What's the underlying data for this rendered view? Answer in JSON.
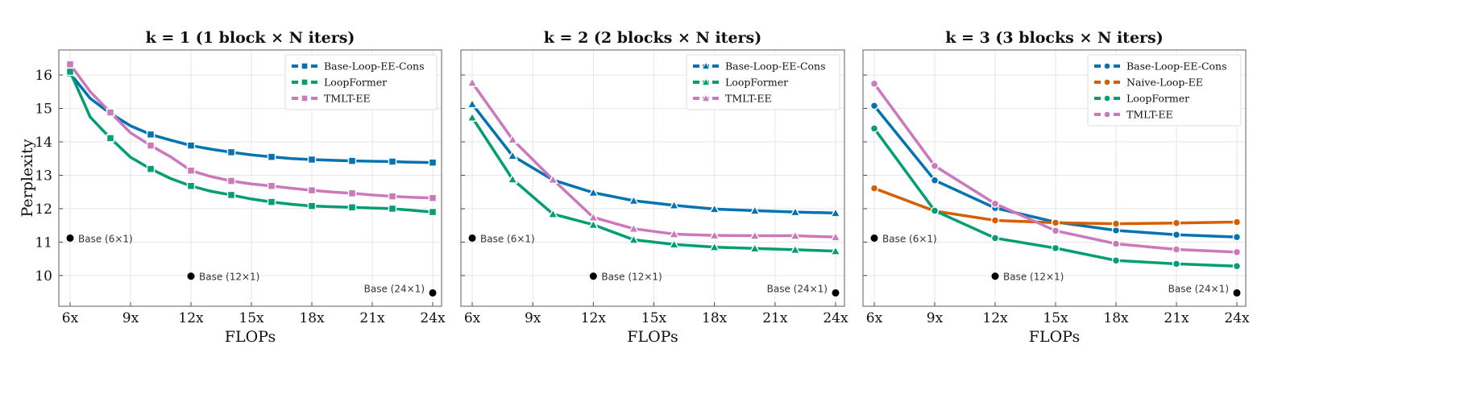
{
  "colors": {
    "Base-Loop-EE-Cons": "#0173b2",
    "Naive-Loop-EE": "#d55e00",
    "LoopFormer": "#029e73",
    "TMLT-EE": "#cc78bc",
    "base": "#000000"
  },
  "chart_data": [
    {
      "type": "line",
      "title": "k = 1  (1 block × N iters)",
      "xlabel": "FLOPs",
      "ylabel": "Perplexity",
      "xlim": [
        5.44,
        24.44
      ],
      "ylim": [
        9.08,
        16.75
      ],
      "xticks": [
        6,
        9,
        12,
        15,
        18,
        21,
        24
      ],
      "xtick_labels": [
        "6x",
        "9x",
        "12x",
        "15x",
        "18x",
        "21x",
        "24x"
      ],
      "yticks": [
        10,
        11,
        12,
        13,
        14,
        15,
        16
      ],
      "ytick_labels": [
        "10",
        "11",
        "12",
        "13",
        "14",
        "15",
        "16"
      ],
      "grid": true,
      "legend_position": "top-right",
      "marker": "square",
      "x": [
        6,
        7,
        8,
        9,
        10,
        11,
        12,
        13,
        14,
        15,
        16,
        17,
        18,
        19,
        20,
        21,
        22,
        23,
        24
      ],
      "marker_x": [
        6,
        8,
        10,
        12,
        14,
        16,
        18,
        20,
        22,
        24
      ],
      "series": [
        {
          "name": "Base-Loop-EE-Cons",
          "values": [
            16.05,
            15.3,
            14.85,
            14.48,
            14.22,
            14.05,
            13.89,
            13.78,
            13.69,
            13.61,
            13.55,
            13.5,
            13.47,
            13.45,
            13.43,
            13.42,
            13.41,
            13.39,
            13.38
          ]
        },
        {
          "name": "LoopFormer",
          "values": [
            16.1,
            14.74,
            14.11,
            13.54,
            13.19,
            12.9,
            12.68,
            12.52,
            12.41,
            12.29,
            12.2,
            12.13,
            12.08,
            12.06,
            12.04,
            12.02,
            12.0,
            11.95,
            11.9
          ]
        },
        {
          "name": "TMLT-EE",
          "values": [
            16.32,
            15.5,
            14.88,
            14.27,
            13.89,
            13.55,
            13.14,
            12.96,
            12.83,
            12.74,
            12.68,
            12.61,
            12.55,
            12.5,
            12.46,
            12.41,
            12.37,
            12.34,
            12.32
          ]
        }
      ],
      "base_points": [
        {
          "label": "Base (6×1)",
          "x": 6,
          "y": 11.12
        },
        {
          "label": "Base (12×1)",
          "x": 12,
          "y": 9.98
        },
        {
          "label": "Base (24×1)",
          "x": 24,
          "y": 9.48
        }
      ]
    },
    {
      "type": "line",
      "title": "k = 2  (2 blocks × N iters)",
      "xlabel": "FLOPs",
      "ylabel": "",
      "xlim": [
        5.44,
        24.44
      ],
      "ylim": [
        9.08,
        16.75
      ],
      "xticks": [
        6,
        9,
        12,
        15,
        18,
        21,
        24
      ],
      "xtick_labels": [
        "6x",
        "9x",
        "12x",
        "15x",
        "18x",
        "21x",
        "24x"
      ],
      "yticks": [
        10,
        11,
        12,
        13,
        14,
        15,
        16
      ],
      "ytick_labels": [],
      "grid": true,
      "legend_position": "top-right",
      "marker": "triangle",
      "x": [
        6,
        8,
        10,
        12,
        14,
        16,
        18,
        20,
        22,
        24
      ],
      "marker_x": [
        6,
        8,
        10,
        12,
        14,
        16,
        18,
        20,
        22,
        24
      ],
      "series": [
        {
          "name": "Base-Loop-EE-Cons",
          "values": [
            15.13,
            13.58,
            12.86,
            12.48,
            12.24,
            12.1,
            11.99,
            11.94,
            11.9,
            11.87
          ]
        },
        {
          "name": "LoopFormer",
          "values": [
            14.73,
            12.88,
            11.84,
            11.52,
            11.07,
            10.93,
            10.85,
            10.81,
            10.77,
            10.73
          ]
        },
        {
          "name": "TMLT-EE",
          "values": [
            15.77,
            14.07,
            12.87,
            11.74,
            11.4,
            11.24,
            11.2,
            11.19,
            11.19,
            11.15
          ]
        }
      ],
      "base_points": [
        {
          "label": "Base (6×1)",
          "x": 6,
          "y": 11.12
        },
        {
          "label": "Base (12×1)",
          "x": 12,
          "y": 9.98
        },
        {
          "label": "Base (24×1)",
          "x": 24,
          "y": 9.48
        }
      ]
    },
    {
      "type": "line",
      "title": "k = 3  (3 blocks × N iters)",
      "xlabel": "FLOPs",
      "ylabel": "",
      "xlim": [
        5.44,
        24.44
      ],
      "ylim": [
        9.08,
        16.75
      ],
      "xticks": [
        6,
        9,
        12,
        15,
        18,
        21,
        24
      ],
      "xtick_labels": [
        "6x",
        "9x",
        "12x",
        "15x",
        "18x",
        "21x",
        "24x"
      ],
      "yticks": [
        10,
        11,
        12,
        13,
        14,
        15,
        16
      ],
      "ytick_labels": [],
      "grid": true,
      "legend_position": "top-right",
      "marker": "circle",
      "x": [
        6,
        9,
        12,
        15,
        18,
        21,
        24
      ],
      "marker_x": [
        6,
        9,
        12,
        15,
        18,
        21,
        24
      ],
      "series": [
        {
          "name": "Base-Loop-EE-Cons",
          "values": [
            15.08,
            12.85,
            12.02,
            11.6,
            11.35,
            11.22,
            11.15
          ]
        },
        {
          "name": "Naive-Loop-EE",
          "values": [
            12.61,
            11.93,
            11.65,
            11.58,
            11.55,
            11.57,
            11.6
          ]
        },
        {
          "name": "LoopFormer",
          "values": [
            14.4,
            11.94,
            11.12,
            10.82,
            10.45,
            10.35,
            10.28
          ]
        },
        {
          "name": "TMLT-EE",
          "values": [
            15.74,
            13.28,
            12.15,
            11.34,
            10.95,
            10.78,
            10.7
          ]
        }
      ],
      "base_points": [
        {
          "label": "Base (6×1)",
          "x": 6,
          "y": 11.12
        },
        {
          "label": "Base (12×1)",
          "x": 12,
          "y": 9.98
        },
        {
          "label": "Base (24×1)",
          "x": 24,
          "y": 9.48
        }
      ]
    }
  ]
}
